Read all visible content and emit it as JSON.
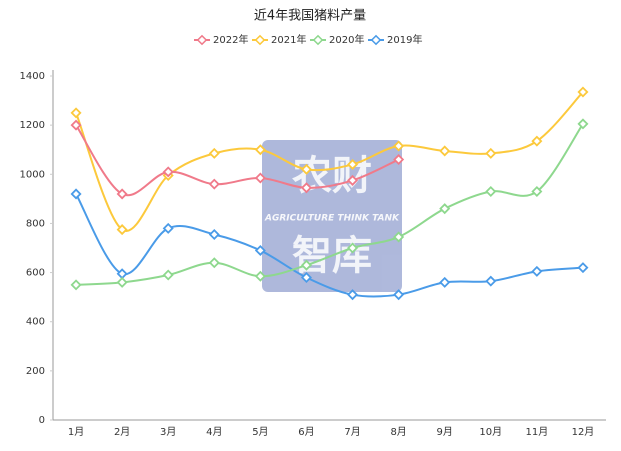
{
  "chart_data": {
    "type": "line",
    "title": "近4年我国猪料产量",
    "categories": [
      "1月",
      "2月",
      "3月",
      "4月",
      "5月",
      "6月",
      "7月",
      "8月",
      "9月",
      "10月",
      "11月",
      "12月"
    ],
    "series": [
      {
        "name": "2022年",
        "color": "#f07a8a",
        "values": [
          1200,
          920,
          1010,
          960,
          985,
          945,
          975,
          1060,
          null,
          null,
          null,
          null
        ]
      },
      {
        "name": "2021年",
        "color": "#fcc93c",
        "values": [
          1250,
          775,
          995,
          1085,
          1100,
          1020,
          1040,
          1115,
          1095,
          1085,
          1135,
          1335
        ]
      },
      {
        "name": "2020年",
        "color": "#8ed88e",
        "values": [
          550,
          560,
          590,
          640,
          585,
          630,
          700,
          745,
          860,
          930,
          930,
          1205
        ]
      },
      {
        "name": "2019年",
        "color": "#4a9be8",
        "values": [
          920,
          595,
          780,
          755,
          690,
          580,
          510,
          510,
          560,
          565,
          605,
          620
        ]
      }
    ],
    "ylim": [
      0,
      1400
    ],
    "yticks": [
      0,
      200,
      400,
      600,
      800,
      1000,
      1200,
      1400
    ],
    "grid": false,
    "smooth": true,
    "legend": "top",
    "watermark": {
      "line1": "农财",
      "line2": "AGRICULTURE THINK TANK",
      "line3": "智库"
    }
  }
}
